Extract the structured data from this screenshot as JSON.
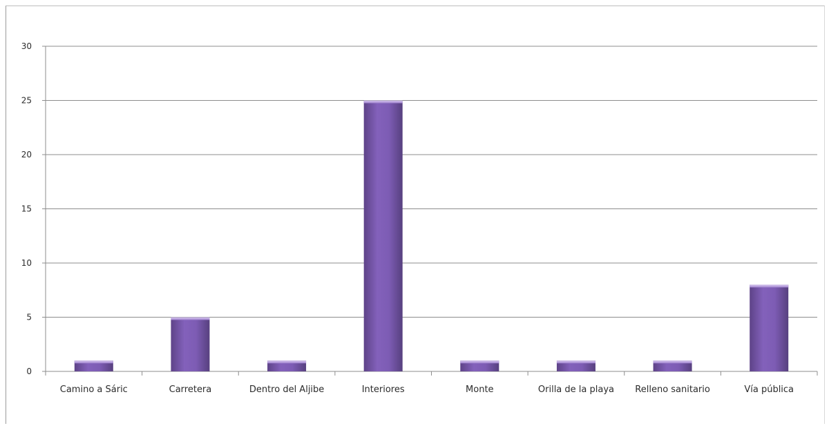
{
  "chart_data": {
    "type": "bar",
    "title": "",
    "xlabel": "",
    "ylabel": "",
    "categories": [
      "Camino a Sáric",
      "Carretera",
      "Dentro del Aljibe",
      "Interiores",
      "Monte",
      "Orilla de la playa",
      "Relleno sanitario",
      "Vía pública"
    ],
    "values": [
      1,
      5,
      1,
      25,
      1,
      1,
      1,
      8
    ],
    "ylim": [
      0,
      30
    ],
    "yticks": [
      0,
      5,
      10,
      15,
      20,
      25,
      30
    ],
    "grid": true,
    "legend": "none",
    "bar_color": "#7a5aa8"
  }
}
